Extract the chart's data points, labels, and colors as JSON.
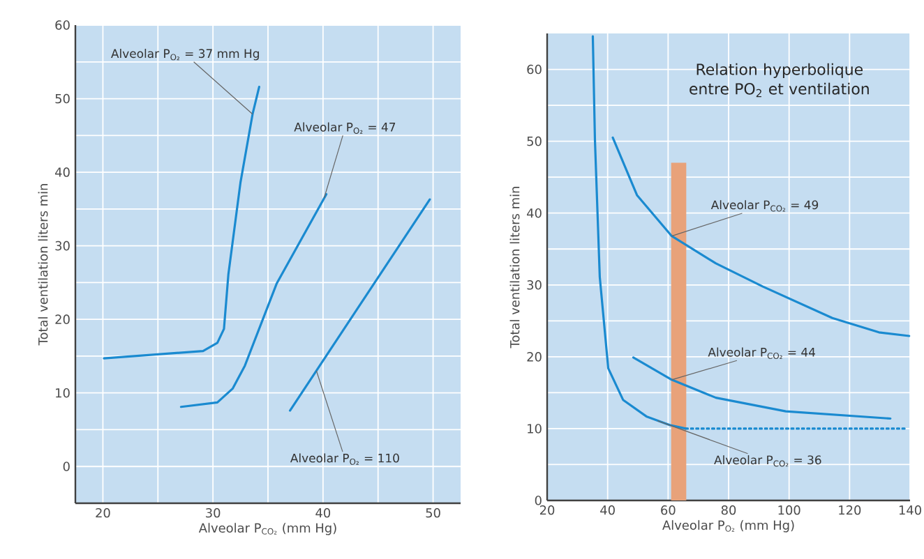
{
  "chart_data": [
    {
      "type": "line",
      "xlabel": "Alveolar P$_{CO₂}$ (mm Hg)",
      "ylabel": "Total ventilation liters min",
      "xlim": [
        17.5,
        52.5
      ],
      "ylim": [
        -5,
        60
      ],
      "xticks": [
        20,
        {
          "value": 25,
          "label": null
        },
        30,
        {
          "value": 35,
          "label": null
        },
        40,
        {
          "value": 45,
          "label": null
        },
        50
      ],
      "yticks": [
        0,
        {
          "value": 5,
          "label": null
        },
        10,
        {
          "value": 15,
          "label": null
        },
        20,
        {
          "value": 25,
          "label": null
        },
        30,
        {
          "value": 35,
          "label": null
        },
        40,
        {
          "value": 45,
          "label": null
        },
        50,
        {
          "value": 55,
          "label": null
        },
        60
      ],
      "grid": true,
      "series": [
        {
          "color": "#1a8ad0",
          "x": [
            20.1,
            29.1,
            30.4,
            31.0,
            31.4,
            32.5,
            33.6,
            34.2
          ],
          "values": [
            14.7,
            15.7,
            16.8,
            18.7,
            26.1,
            38.6,
            47.9,
            51.6
          ]
        },
        {
          "color": "#1a8ad0",
          "x": [
            27.1,
            30.4,
            31.8,
            32.9,
            35.8,
            40.3
          ],
          "values": [
            8.1,
            8.7,
            10.6,
            13.7,
            24.9,
            37.0
          ]
        },
        {
          "color": "#1a8ad0",
          "x": [
            37.0,
            49.7
          ],
          "values": [
            7.6,
            36.3
          ]
        }
      ],
      "annotations": [
        {
          "text": "Alveolar P$_{O₂}$ = 37 mm Hg",
          "x": 33.6,
          "y": 47.9
        },
        {
          "text": "Alveolar P$_{O₂}$ = 47",
          "x": 40.1,
          "y": 36.5
        },
        {
          "text": "Alveolar P$_{O₂}$ = 110",
          "x": 39.4,
          "y": 13.0
        }
      ]
    },
    {
      "type": "line",
      "title": "Relation hyperbolique entre PO$_{2}$ et ventilation",
      "xlabel": "Alveolar P$_{O₂}$ (mm Hg)",
      "ylabel": "Total ventilation liters min",
      "xlim": [
        20,
        140
      ],
      "ylim": [
        0,
        65
      ],
      "xticks": [
        20,
        40,
        60,
        80,
        100,
        120,
        140
      ],
      "yticks": [
        0,
        {
          "value": 5,
          "label": null
        },
        10,
        {
          "value": 15,
          "label": null
        },
        20,
        {
          "value": 25,
          "label": null
        },
        30,
        {
          "value": 35,
          "label": null
        },
        40,
        {
          "value": 45,
          "label": null
        },
        50,
        {
          "value": 55,
          "label": null
        },
        60
      ],
      "grid": true,
      "series": [
        {
          "type": "bar",
          "color": "#e8a27a",
          "x": [
            63.5
          ],
          "values": [
            47
          ]
        },
        {
          "color": "#1a8ad0",
          "x": [
            35.1,
            35.8,
            37.4,
            40.2,
            45.1,
            52.8,
            60.5,
            65.8
          ],
          "values": [
            64.6,
            50.2,
            31.1,
            18.4,
            14.0,
            11.7,
            10.5,
            10.0
          ]
        },
        {
          "color": "#1a8ad0",
          "line_style": "dotted",
          "x": [
            65.8,
            138.2
          ],
          "values": [
            10,
            10
          ]
        },
        {
          "color": "#1a8ad0",
          "x": [
            41.7,
            49.7,
            61.2,
            75.8,
            91.2,
            114.3,
            129.7,
            139.7
          ],
          "values": [
            50.5,
            42.5,
            36.8,
            33.0,
            29.8,
            25.4,
            23.4,
            22.9
          ]
        },
        {
          "color": "#1a8ad0",
          "x": [
            48.5,
            61.2,
            75.8,
            98.9,
            133.5
          ],
          "values": [
            19.9,
            16.8,
            14.3,
            12.4,
            11.4
          ]
        }
      ],
      "annotations": [
        {
          "text": "Alveolar P$_{CO₂}$ = 49",
          "x": 61.2,
          "y": 36.8
        },
        {
          "text": "Alveolar P$_{CO₂}$ = 44",
          "x": 61.2,
          "y": 16.8
        },
        {
          "text": "Alveolar P$_{CO₂}$ = 36",
          "x": 56.5,
          "y": 11.1
        }
      ]
    }
  ]
}
